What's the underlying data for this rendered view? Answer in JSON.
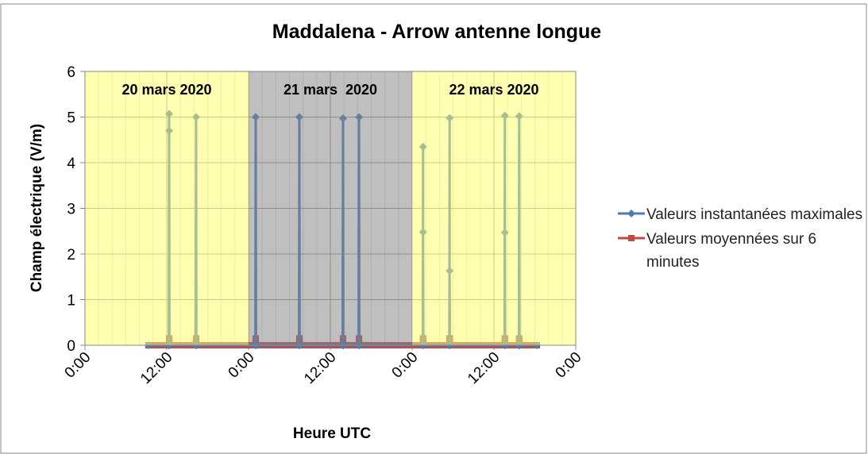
{
  "chart_data": {
    "type": "line",
    "title": "Maddalena - Arrow antenne longue",
    "xlabel": "Heure UTC",
    "ylabel": "Champ électrique (V/m)",
    "xlim": [
      0,
      72
    ],
    "xticks": [
      {
        "value": 0,
        "label": "0:00"
      },
      {
        "value": 12,
        "label": "12:00"
      },
      {
        "value": 24,
        "label": "0:00"
      },
      {
        "value": 36,
        "label": "12:00"
      },
      {
        "value": 48,
        "label": "0:00"
      },
      {
        "value": 60,
        "label": "12:00"
      },
      {
        "value": 72,
        "label": "0:00"
      }
    ],
    "x_minor_step": 2,
    "ylim": [
      0,
      6
    ],
    "yticks": [
      0,
      1,
      2,
      3,
      4,
      5,
      6
    ],
    "grid": true,
    "legend": "right",
    "bands": [
      {
        "label": "20 mars 2020",
        "start": 0,
        "end": 24,
        "color": "#ffff66"
      },
      {
        "label": "21 mars  2020",
        "start": 24,
        "end": 48,
        "color": "#808080"
      },
      {
        "label": "22 mars 2020",
        "start": 48,
        "end": 72,
        "color": "#ffff66"
      }
    ],
    "x": [
      9.3,
      12.3,
      12.35,
      12.35,
      12.4,
      16.25,
      16.3,
      16.35,
      25.0,
      25.05,
      25.1,
      31.4,
      31.45,
      31.5,
      37.8,
      37.86,
      37.9,
      40.15,
      40.2,
      40.25,
      49.55,
      49.6,
      49.6,
      49.65,
      53.45,
      53.5,
      53.5,
      53.55,
      61.55,
      61.6,
      61.6,
      61.65,
      63.65,
      63.7,
      63.75,
      66.3
    ],
    "series": [
      {
        "name": "Valeurs moyennées sur 6 minutes",
        "color": "#be4b48",
        "marker": "square",
        "values": [
          0,
          0,
          0.15,
          0.15,
          0,
          0,
          0.15,
          0,
          0,
          0.15,
          0,
          0,
          0.15,
          0,
          0,
          0.15,
          0,
          0,
          0.15,
          0,
          0,
          0.15,
          0.15,
          0,
          0,
          0.15,
          0.15,
          0,
          0,
          0.15,
          0.15,
          0,
          0,
          0.15,
          0,
          0
        ]
      },
      {
        "name": "Valeurs instantanées maximales",
        "color": "#4a7ebb",
        "marker": "diamond",
        "values": [
          0,
          0,
          5.07,
          4.7,
          0,
          0,
          5.0,
          0,
          0,
          5.0,
          0,
          0,
          5.0,
          0,
          0,
          4.97,
          0,
          0,
          5.0,
          0,
          0,
          4.35,
          2.48,
          0,
          0,
          4.98,
          1.63,
          0,
          0,
          5.03,
          2.47,
          0,
          0,
          5.02,
          0,
          0
        ]
      }
    ]
  }
}
